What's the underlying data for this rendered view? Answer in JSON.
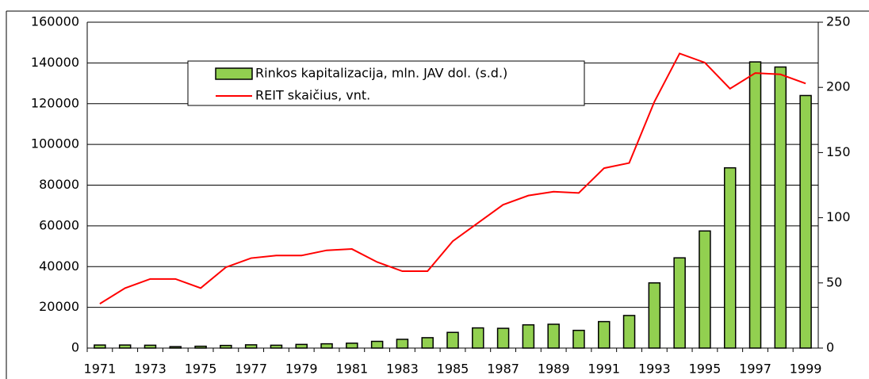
{
  "chart_data": {
    "type": "bar-line",
    "categories": [
      "1971",
      null,
      "1973",
      null,
      "1975",
      null,
      "1977",
      null,
      "1979",
      null,
      "1981",
      null,
      "1983",
      null,
      "1985",
      null,
      "1987",
      null,
      "1989",
      null,
      "1991",
      null,
      "1993",
      null,
      "1995",
      null,
      "1997",
      null,
      "1999"
    ],
    "series": [
      {
        "name": "Rinkos kapitalizacija, mln. JAV dol. (s.d.)",
        "type": "bar",
        "color": "#92d050",
        "values": [
          1500,
          1500,
          1400,
          700,
          900,
          1300,
          1600,
          1400,
          1800,
          2100,
          2400,
          3300,
          4300,
          5100,
          7700,
          9900,
          9700,
          11400,
          11700,
          8700,
          13000,
          16000,
          32000,
          44300,
          57500,
          88500,
          140500,
          138000,
          124000
        ]
      },
      {
        "name": "REIT skaičius, vnt.",
        "type": "line",
        "color": "#ff0000",
        "axis": "y2",
        "values": [
          34,
          46,
          53,
          53,
          46,
          62,
          69,
          71,
          71,
          75,
          76,
          66,
          59,
          59,
          82,
          96,
          110,
          117,
          120,
          119,
          138,
          142,
          189,
          226,
          219,
          199,
          211,
          210,
          203
        ]
      }
    ],
    "ylim": [
      0,
      160000
    ],
    "yticks": [
      0,
      20000,
      40000,
      60000,
      80000,
      100000,
      120000,
      140000,
      160000
    ],
    "y2lim": [
      0,
      250
    ],
    "y2ticks": [
      0,
      50,
      100,
      150,
      200,
      250
    ],
    "grid": true,
    "legend": "top-left"
  }
}
